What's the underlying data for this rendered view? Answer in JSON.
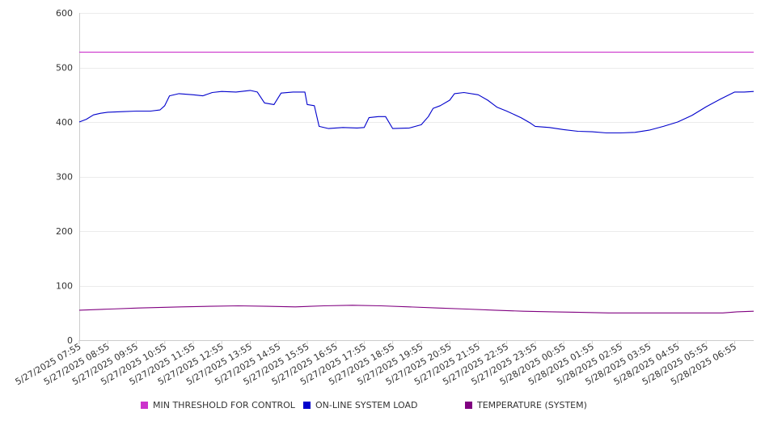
{
  "chart_data": {
    "type": "line",
    "ylim": [
      0,
      600
    ],
    "yticks": [
      0,
      100,
      200,
      300,
      400,
      500,
      600
    ],
    "x_ticks": [
      "5/27/2025 07:55",
      "5/27/2025 08:55",
      "5/27/2025 09:55",
      "5/27/2025 10:55",
      "5/27/2025 11:55",
      "5/27/2025 12:55",
      "5/27/2025 13:55",
      "5/27/2025 14:55",
      "5/27/2025 15:55",
      "5/27/2025 16:55",
      "5/27/2025 17:55",
      "5/27/2025 18:55",
      "5/27/2025 19:55",
      "5/27/2025 20:55",
      "5/27/2025 21:55",
      "5/27/2025 22:55",
      "5/27/2025 23:55",
      "5/28/2025 00:55",
      "5/28/2025 01:55",
      "5/28/2025 02:55",
      "5/28/2025 03:55",
      "5/28/2025 04:55",
      "5/28/2025 05:55",
      "5/28/2025 06:55"
    ],
    "grid": true,
    "legend_position": "bottom",
    "series": [
      {
        "name": "MIN THRESHOLD FOR CONTROL",
        "color": "#cc33cc",
        "points": [
          [
            "5/27/2025 07:55",
            528
          ],
          [
            "5/28/2025 07:35",
            528
          ]
        ]
      },
      {
        "name": "ON-LINE SYSTEM LOAD",
        "color": "#0000cc",
        "points": [
          [
            "5/27/2025 07:55",
            400
          ],
          [
            "5/27/2025 08:10",
            405
          ],
          [
            "5/27/2025 08:25",
            413
          ],
          [
            "5/27/2025 08:40",
            416
          ],
          [
            "5/27/2025 08:55",
            418
          ],
          [
            "5/27/2025 09:25",
            419
          ],
          [
            "5/27/2025 09:55",
            420
          ],
          [
            "5/27/2025 10:25",
            420
          ],
          [
            "5/27/2025 10:45",
            422
          ],
          [
            "5/27/2025 10:55",
            430
          ],
          [
            "5/27/2025 11:05",
            448
          ],
          [
            "5/27/2025 11:25",
            452
          ],
          [
            "5/27/2025 11:55",
            450
          ],
          [
            "5/27/2025 12:15",
            448
          ],
          [
            "5/27/2025 12:35",
            454
          ],
          [
            "5/27/2025 12:55",
            456
          ],
          [
            "5/27/2025 13:25",
            455
          ],
          [
            "5/27/2025 13:55",
            458
          ],
          [
            "5/27/2025 14:10",
            455
          ],
          [
            "5/27/2025 14:25",
            435
          ],
          [
            "5/27/2025 14:45",
            432
          ],
          [
            "5/27/2025 15:00",
            453
          ],
          [
            "5/27/2025 15:25",
            455
          ],
          [
            "5/27/2025 15:50",
            455
          ],
          [
            "5/27/2025 15:55",
            432
          ],
          [
            "5/27/2025 16:10",
            430
          ],
          [
            "5/27/2025 16:20",
            392
          ],
          [
            "5/27/2025 16:40",
            388
          ],
          [
            "5/27/2025 17:10",
            390
          ],
          [
            "5/27/2025 17:40",
            389
          ],
          [
            "5/27/2025 17:55",
            390
          ],
          [
            "5/27/2025 18:05",
            408
          ],
          [
            "5/27/2025 18:25",
            410
          ],
          [
            "5/27/2025 18:40",
            410
          ],
          [
            "5/27/2025 18:55",
            388
          ],
          [
            "5/27/2025 19:30",
            389
          ],
          [
            "5/27/2025 19:55",
            395
          ],
          [
            "5/27/2025 20:10",
            410
          ],
          [
            "5/27/2025 20:20",
            425
          ],
          [
            "5/27/2025 20:35",
            430
          ],
          [
            "5/27/2025 20:55",
            440
          ],
          [
            "5/27/2025 21:05",
            452
          ],
          [
            "5/27/2025 21:25",
            454
          ],
          [
            "5/27/2025 21:55",
            450
          ],
          [
            "5/27/2025 22:15",
            440
          ],
          [
            "5/27/2025 22:35",
            427
          ],
          [
            "5/27/2025 22:55",
            420
          ],
          [
            "5/27/2025 23:25",
            408
          ],
          [
            "5/27/2025 23:45",
            398
          ],
          [
            "5/27/2025 23:55",
            392
          ],
          [
            "5/28/2025 00:25",
            390
          ],
          [
            "5/28/2025 00:55",
            386
          ],
          [
            "5/28/2025 01:25",
            383
          ],
          [
            "5/28/2025 01:55",
            382
          ],
          [
            "5/28/2025 02:25",
            380
          ],
          [
            "5/28/2025 02:55",
            380
          ],
          [
            "5/28/2025 03:25",
            381
          ],
          [
            "5/28/2025 03:55",
            385
          ],
          [
            "5/28/2025 04:25",
            392
          ],
          [
            "5/28/2025 04:55",
            400
          ],
          [
            "5/28/2025 05:25",
            412
          ],
          [
            "5/28/2025 05:55",
            428
          ],
          [
            "5/28/2025 06:25",
            442
          ],
          [
            "5/28/2025 06:55",
            455
          ],
          [
            "5/28/2025 07:15",
            455
          ],
          [
            "5/28/2025 07:35",
            456
          ]
        ]
      },
      {
        "name": "TEMPERATURE (SYSTEM)",
        "color": "#800080",
        "points": [
          [
            "5/27/2025 07:55",
            55
          ],
          [
            "5/27/2025 09:00",
            57
          ],
          [
            "5/27/2025 10:00",
            59
          ],
          [
            "5/27/2025 11:30",
            61
          ],
          [
            "5/27/2025 12:30",
            62
          ],
          [
            "5/27/2025 13:30",
            63
          ],
          [
            "5/27/2025 14:30",
            62
          ],
          [
            "5/27/2025 15:30",
            61
          ],
          [
            "5/27/2025 16:30",
            63
          ],
          [
            "5/27/2025 17:30",
            64
          ],
          [
            "5/27/2025 18:30",
            63
          ],
          [
            "5/27/2025 19:30",
            61
          ],
          [
            "5/27/2025 20:30",
            59
          ],
          [
            "5/27/2025 21:30",
            57
          ],
          [
            "5/27/2025 22:30",
            55
          ],
          [
            "5/27/2025 23:30",
            53
          ],
          [
            "5/28/2025 00:30",
            52
          ],
          [
            "5/28/2025 01:30",
            51
          ],
          [
            "5/28/2025 02:30",
            50
          ],
          [
            "5/28/2025 03:30",
            50
          ],
          [
            "5/28/2025 04:30",
            50
          ],
          [
            "5/28/2025 05:30",
            50
          ],
          [
            "5/28/2025 06:30",
            50
          ],
          [
            "5/28/2025 07:00",
            52
          ],
          [
            "5/28/2025 07:35",
            53
          ]
        ]
      }
    ]
  }
}
